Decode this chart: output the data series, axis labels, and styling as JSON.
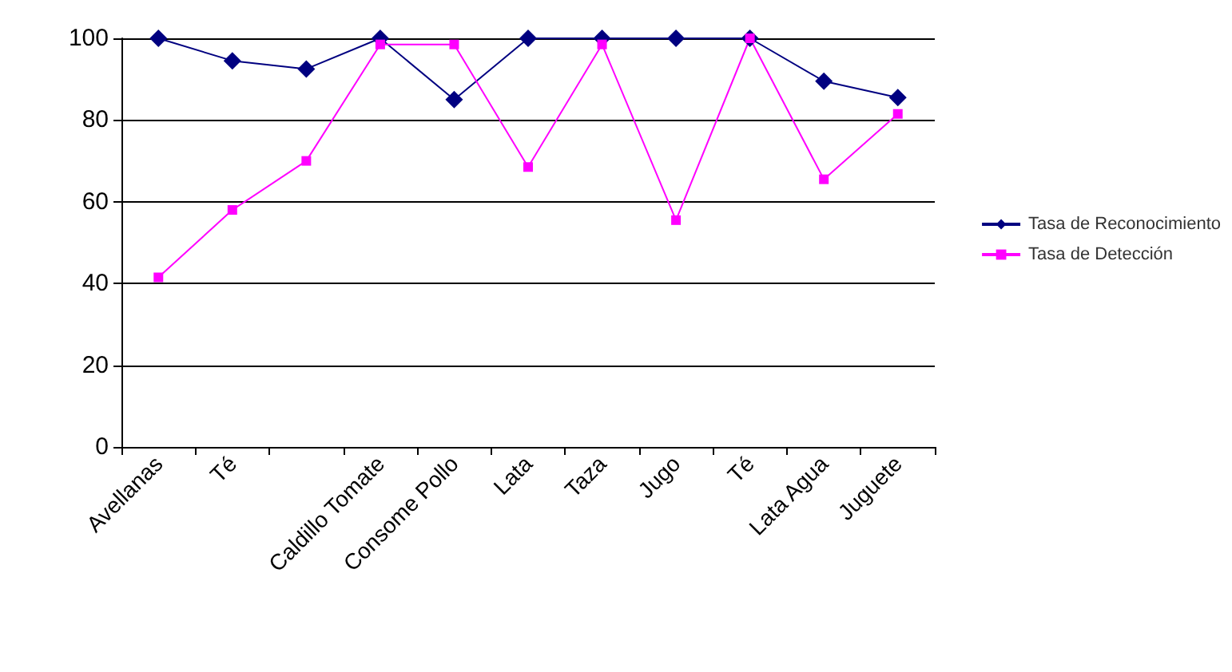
{
  "chart_data": {
    "type": "line",
    "categories": [
      "Avellanas",
      "Té",
      null,
      "Caldillo Tomate",
      "Consome Pollo",
      "Lata",
      "Taza",
      "Jugo",
      "Té",
      "Lata Agua",
      "Juguete"
    ],
    "series": [
      {
        "name": "Tasa de Reconocimiento",
        "color": "#000080",
        "marker": "diamond",
        "values": [
          100,
          94.5,
          92.5,
          100,
          85,
          100,
          100,
          100,
          100,
          89.5,
          85.5
        ]
      },
      {
        "name": "Tasa de Detección",
        "color": "#ff00ff",
        "marker": "square",
        "values": [
          41.5,
          58,
          70,
          98.5,
          98.5,
          68.5,
          98.5,
          55.5,
          100,
          65.5,
          81.5
        ]
      }
    ],
    "ylim": [
      0,
      100
    ],
    "yticks": [
      0,
      20,
      40,
      60,
      80,
      100
    ],
    "grid": "y",
    "legend": "right",
    "line_style": "solid"
  }
}
